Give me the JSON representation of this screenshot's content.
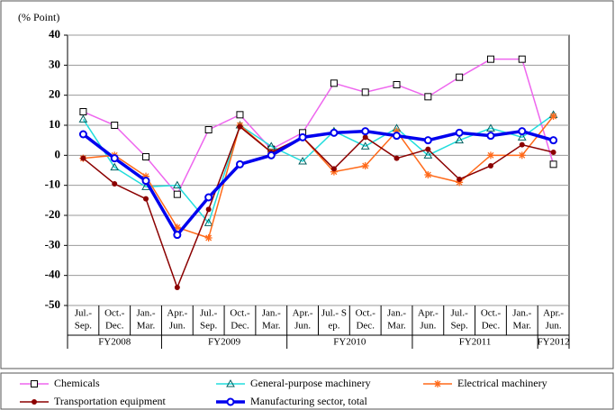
{
  "chart_data": {
    "type": "line",
    "y_axis_label": "(% Point)",
    "categories": [
      [
        "Jul.-",
        "Sep."
      ],
      [
        "Oct.-",
        "Dec."
      ],
      [
        "Jan.-",
        "Mar."
      ],
      [
        "Apr.-",
        "Jun."
      ],
      [
        "Jul.-",
        "Sep."
      ],
      [
        "Oct.-",
        "Dec."
      ],
      [
        "Jan.-",
        "Mar."
      ],
      [
        "Apr.-",
        "Jun."
      ],
      [
        "Jul.- S",
        "ep."
      ],
      [
        "Oct.-",
        "Dec."
      ],
      [
        "Jan.-",
        "Mar."
      ],
      [
        "Apr.-",
        "Jun."
      ],
      [
        "Jul.-",
        "Sep."
      ],
      [
        "Oct.-",
        "Dec."
      ],
      [
        "Jan.-",
        "Mar."
      ],
      [
        "Apr.-",
        "Jun."
      ]
    ],
    "fiscal_years": [
      "FY2008",
      "FY2008",
      "FY2008",
      "FY2009",
      "FY2009",
      "FY2009",
      "FY2009",
      "FY2010",
      "FY2010",
      "FY2010",
      "FY2010",
      "FY2011",
      "FY2011",
      "FY2011",
      "FY2011",
      "FY2012"
    ],
    "ylim": [
      -50,
      40
    ],
    "yticks": [
      -50,
      -40,
      -30,
      -20,
      -10,
      0,
      10,
      20,
      30,
      40
    ],
    "grid": true,
    "series": [
      {
        "name": "Chemicals",
        "color": "#ee66ee",
        "marker": "square",
        "values": [
          14.5,
          10,
          -0.5,
          -13,
          8.5,
          13.5,
          2,
          7.5,
          24,
          21,
          23.5,
          19.5,
          26,
          32,
          32,
          -3
        ]
      },
      {
        "name": "General-purpose machinery",
        "color": "#22dddd",
        "marker": "triangle",
        "values": [
          12,
          -4,
          -10.5,
          -10,
          -22.5,
          10,
          3,
          -2,
          8,
          3,
          9,
          0,
          5,
          9,
          6,
          13.5
        ]
      },
      {
        "name": "Electrical machinery",
        "color": "#ff6a1a",
        "marker": "asterisk",
        "values": [
          -1,
          0,
          -7,
          -24,
          -27.5,
          10,
          1,
          6,
          -5.5,
          -3.5,
          8,
          -6.5,
          -9,
          0,
          0,
          13
        ]
      },
      {
        "name": "Transportation equipment",
        "color": "#8b0000",
        "marker": "circle",
        "values": [
          -1,
          -9.5,
          -14.5,
          -44,
          -18,
          9.5,
          1,
          6,
          -4.5,
          6,
          -1,
          2,
          -8,
          -3.5,
          3.5,
          1
        ]
      },
      {
        "name": "Manufacturing sector, total",
        "color": "#0000ee",
        "marker": "ring",
        "values": [
          7,
          -1,
          -8.5,
          -26.5,
          -14,
          -3,
          0,
          6,
          7.5,
          8,
          6.5,
          5,
          7.5,
          6.5,
          8,
          5
        ]
      }
    ]
  }
}
